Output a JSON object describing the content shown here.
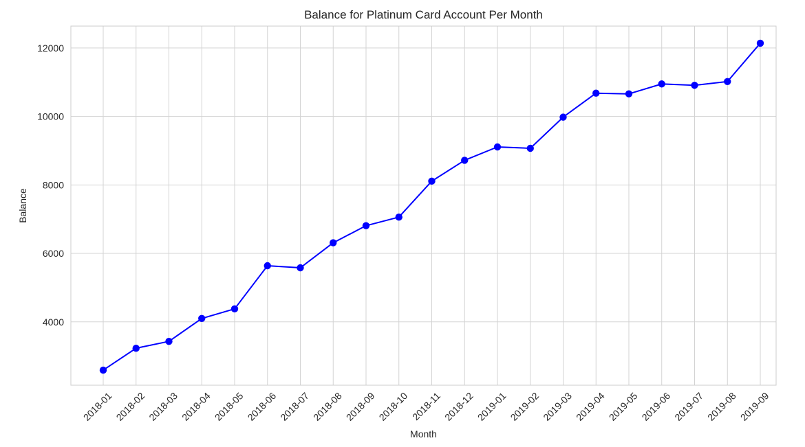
{
  "chart_data": {
    "type": "line",
    "title": "Balance for Platinum Card Account Per Month",
    "xlabel": "Month",
    "ylabel": "Balance",
    "categories": [
      "2018-01",
      "2018-02",
      "2018-03",
      "2018-04",
      "2018-05",
      "2018-06",
      "2018-07",
      "2018-08",
      "2018-09",
      "2018-10",
      "2018-11",
      "2018-12",
      "2019-01",
      "2019-02",
      "2019-03",
      "2019-04",
      "2019-05",
      "2019-06",
      "2019-07",
      "2019-08",
      "2019-09"
    ],
    "series": [
      {
        "values": [
          2590,
          3230,
          3430,
          4100,
          4380,
          5640,
          5580,
          6310,
          6810,
          7060,
          8110,
          8720,
          9110,
          9070,
          9980,
          10680,
          10660,
          10950,
          10910,
          11020,
          12140
        ]
      }
    ],
    "ylim": [
      2150,
      12640
    ],
    "yticks": [
      4000,
      6000,
      8000,
      10000,
      12000
    ],
    "grid": true,
    "legend": "none",
    "line_color": "#0000ff",
    "grid_color": "#d3d3d3",
    "spine_color": "#cccccc",
    "text_color": "#262626"
  }
}
